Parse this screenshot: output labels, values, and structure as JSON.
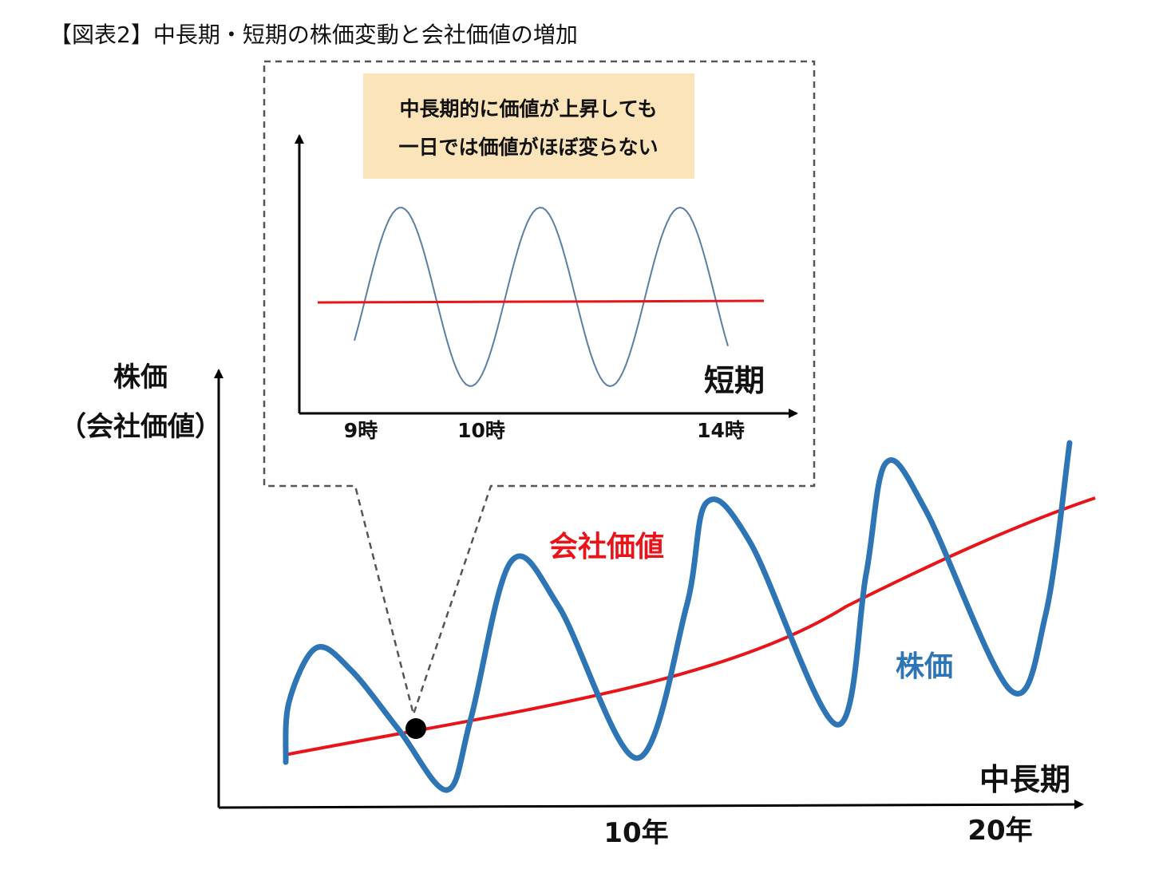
{
  "title": "【図表2】中長期・短期の株価変動と会社価値の増加",
  "inset": {
    "callout_line1": "中長期的に価値が上昇しても",
    "callout_line2": "一日では価値がほぼ変らない",
    "axis_label": "短期",
    "tick_labels": [
      "9時",
      "10時",
      "14時"
    ]
  },
  "main": {
    "y_label_line1": "株価",
    "y_label_line2": "（会社価値）",
    "x_label": "中長期",
    "tick_labels": [
      "10年",
      "20年"
    ],
    "value_label": "会社価値",
    "price_label": "株価"
  },
  "colors": {
    "price": "#2E75B6",
    "value": "#E8141A",
    "inset_price": "#5A7FA0",
    "callout_bg": "#FCE4BA",
    "axis": "#000000",
    "dashed_border": "#555555"
  }
}
